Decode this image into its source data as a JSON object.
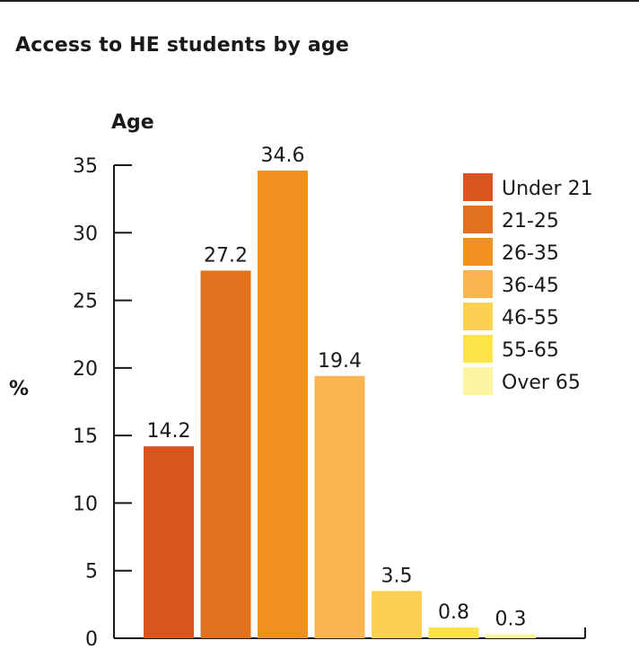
{
  "chart_data": {
    "type": "bar",
    "title": "Access to HE students by age",
    "xlabel": "",
    "ylabel": "%",
    "series_title": "Age",
    "ylim": [
      0,
      35
    ],
    "yticks": [
      0,
      5,
      10,
      15,
      20,
      25,
      30,
      35
    ],
    "grid": false,
    "legend_position": "top-right",
    "categories": [
      "Under 21",
      "21-25",
      "26-35",
      "36-45",
      "46-55",
      "55-65",
      "Over 65"
    ],
    "values": [
      14.2,
      27.2,
      34.6,
      19.4,
      3.5,
      0.8,
      0.3
    ],
    "value_labels": [
      "14.2",
      "27.2",
      "34.6",
      "19.4",
      "3.5",
      "0.8",
      "0.3"
    ],
    "colors": [
      "#d9541e",
      "#e2711f",
      "#f0901f",
      "#fbb54f",
      "#fcd051",
      "#fde248",
      "#fef5a3"
    ]
  }
}
